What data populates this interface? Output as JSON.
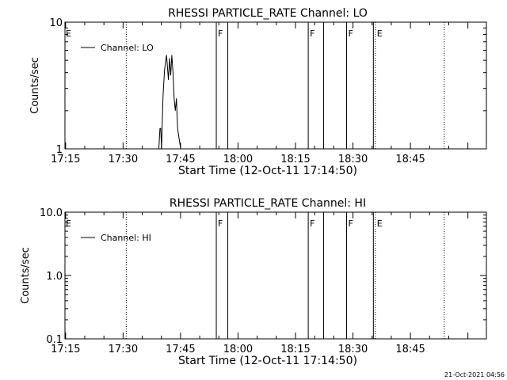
{
  "timestamp": "21-Oct-2021 04:56",
  "chart_data": [
    {
      "type": "line",
      "title": "RHESSI PARTICLE_RATE Channel: LO",
      "xlabel": "Start Time (12-Oct-11 17:14:50)",
      "ylabel": "Counts/sec",
      "x_unit": "minutes after 17:14:50",
      "xlim": [
        0,
        110
      ],
      "ylim": [
        1,
        10
      ],
      "y_scale": "log",
      "x_ticks": [
        "17:15",
        "17:30",
        "17:45",
        "18:00",
        "18:15",
        "18:30",
        "18:45"
      ],
      "x_tick_values": [
        0.17,
        15.17,
        30.17,
        45.17,
        60.17,
        75.17,
        90.17
      ],
      "y_ticks": [
        "1",
        "10"
      ],
      "y_tick_values": [
        1,
        10
      ],
      "grid": false,
      "legend": {
        "position": "top-left",
        "label": "Channel: LO"
      },
      "series": [
        {
          "name": "Channel: LO",
          "x": [
            24.5,
            24.8,
            25.0,
            25.2,
            25.6,
            26.0,
            26.5,
            27.0,
            27.3,
            27.6,
            27.9,
            28.2,
            28.5,
            28.8,
            29.1,
            29.4,
            29.8,
            30.2
          ],
          "y": [
            1,
            1.45,
            1.45,
            1,
            2.6,
            4.2,
            5.5,
            3.5,
            5.2,
            3.8,
            5.5,
            4.0,
            2.5,
            2.0,
            2.5,
            1.45,
            1.2,
            1
          ]
        }
      ],
      "flag_lines": [
        {
          "x": 16.0,
          "style": "dotted",
          "label": ""
        },
        {
          "x": 39.5,
          "style": "solid",
          "label": "F"
        },
        {
          "x": 42.5,
          "style": "solid",
          "label": ""
        },
        {
          "x": 63.5,
          "style": "solid",
          "label": "F"
        },
        {
          "x": 67.5,
          "style": "solid",
          "label": ""
        },
        {
          "x": 73.5,
          "style": "solid",
          "label": "F"
        },
        {
          "x": 80.5,
          "style": "solid",
          "label": ""
        },
        {
          "x": 81.0,
          "style": "dotted",
          "label": "E"
        },
        {
          "x": 99.0,
          "style": "dotted",
          "label": ""
        }
      ],
      "edge_label": "E"
    },
    {
      "type": "line",
      "title": "RHESSI PARTICLE_RATE Channel: HI",
      "xlabel": "Start Time (12-Oct-11 17:14:50)",
      "ylabel": "Counts/sec",
      "x_unit": "minutes after 17:14:50",
      "xlim": [
        0,
        110
      ],
      "ylim": [
        0.1,
        10
      ],
      "y_scale": "log",
      "x_ticks": [
        "17:15",
        "17:30",
        "17:45",
        "18:00",
        "18:15",
        "18:30",
        "18:45"
      ],
      "x_tick_values": [
        0.17,
        15.17,
        30.17,
        45.17,
        60.17,
        75.17,
        90.17
      ],
      "y_ticks": [
        "0.1",
        "1.0",
        "10.0"
      ],
      "y_tick_values": [
        0.1,
        1,
        10
      ],
      "grid": false,
      "legend": {
        "position": "top-left",
        "label": "Channel: HI"
      },
      "series": [
        {
          "name": "Channel: HI",
          "x": [],
          "y": []
        }
      ],
      "flag_lines": [
        {
          "x": 16.0,
          "style": "dotted",
          "label": ""
        },
        {
          "x": 39.5,
          "style": "solid",
          "label": "F"
        },
        {
          "x": 42.5,
          "style": "solid",
          "label": ""
        },
        {
          "x": 63.5,
          "style": "solid",
          "label": "F"
        },
        {
          "x": 67.5,
          "style": "solid",
          "label": ""
        },
        {
          "x": 73.5,
          "style": "solid",
          "label": "F"
        },
        {
          "x": 80.5,
          "style": "solid",
          "label": ""
        },
        {
          "x": 81.0,
          "style": "dotted",
          "label": "E"
        },
        {
          "x": 99.0,
          "style": "dotted",
          "label": ""
        }
      ],
      "edge_label": "E"
    }
  ]
}
